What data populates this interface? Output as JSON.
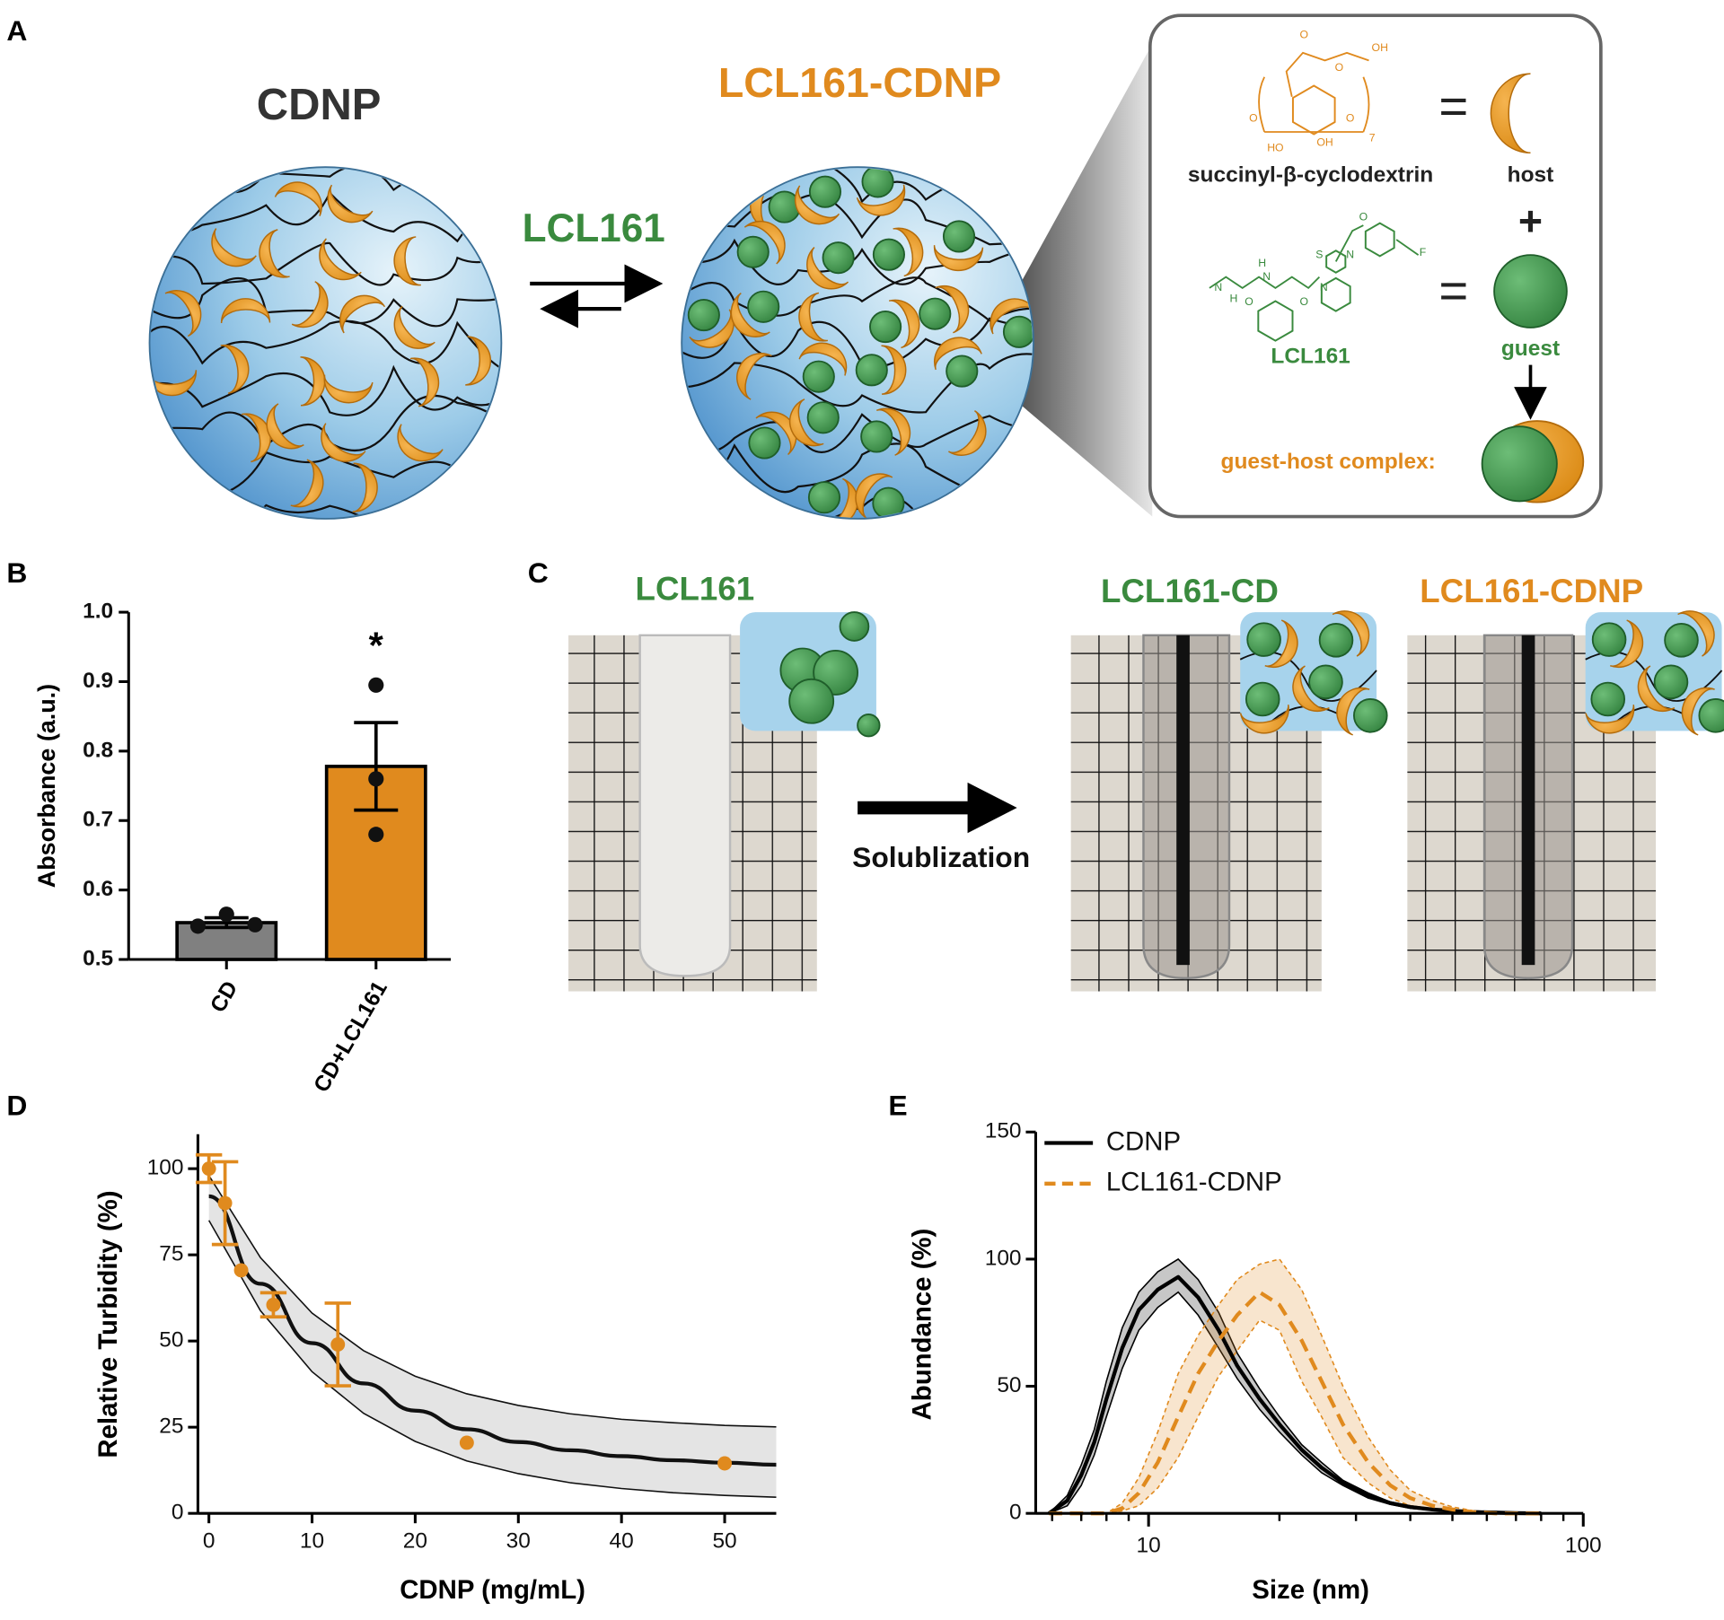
{
  "panel_labels": [
    "A",
    "B",
    "C",
    "D",
    "E"
  ],
  "diagram_a": {
    "cdnp_label": "CDNP",
    "loaded_label": "LCL161-CDNP",
    "arrow_label": "LCL161",
    "box": {
      "host_name": "succinyl-β-cyclodextrin",
      "equals_1": "=",
      "host": "host",
      "plus": "+",
      "guest_name": "LCL161",
      "equals_2": "=",
      "guest": "guest",
      "complex": "guest-host complex:"
    },
    "host_atoms": [
      "O",
      "O",
      "OH",
      "O",
      "O",
      "HO",
      "OH",
      "7"
    ],
    "guest_atoms": [
      "N",
      "H",
      "O",
      "H",
      "N",
      "O",
      "N",
      "S",
      "N",
      "O",
      "F"
    ]
  },
  "panel_c": {
    "labels": [
      "LCL161",
      "LCL161-CD",
      "LCL161-CDNP"
    ],
    "arrow_label": "Solublization"
  },
  "chart_data": [
    {
      "type": "bar",
      "categories": [
        "CD",
        "CD+LCL161"
      ],
      "values": [
        0.553,
        0.778
      ],
      "errors": [
        0.007,
        0.063
      ],
      "points": [
        [
          0.548,
          0.565,
          0.55
        ],
        [
          0.895,
          0.76,
          0.68
        ]
      ],
      "colors": [
        "#808080",
        "#e08a1e"
      ],
      "ylabel": "Absorbance (a.u.)",
      "annotation": "*",
      "ylim": [
        0.5,
        1
      ],
      "yticks": [
        0.5,
        0.6,
        0.7,
        0.8,
        0.9,
        {
          "value": 1,
          "label": "1.0"
        }
      ]
    },
    {
      "type": "scatter",
      "x": [
        0,
        1.5625,
        3.125,
        6.25,
        12.5,
        25,
        50
      ],
      "values": [
        100,
        90,
        70.5,
        60.5,
        49,
        20.5,
        14.5
      ],
      "errors": [
        4,
        12,
        0,
        3.5,
        12,
        0,
        0
      ],
      "color": "#e08a1e",
      "fit": {
        "x": [
          0,
          5,
          10,
          15,
          20,
          25,
          30,
          35,
          40,
          45,
          50,
          55
        ],
        "values": [
          92,
          66.6,
          49.4,
          37.7,
          29.8,
          24.4,
          20.7,
          18.3,
          16.6,
          15.4,
          14.7,
          14.1
        ],
        "upper": [
          98,
          74.2,
          58.1,
          47.2,
          39.8,
          34.7,
          31.3,
          28.9,
          27.3,
          26.3,
          25.5,
          25.1
        ],
        "lower": [
          85,
          58.8,
          41.1,
          29,
          20.9,
          15.2,
          11.5,
          8.9,
          7.2,
          6,
          5.2,
          4.7
        ]
      },
      "xlabel": "CDNP (mg/mL)",
      "ylabel": "Relative Turbidity (%)",
      "xlim": [
        0,
        55
      ],
      "xticks": [
        0,
        10,
        20,
        30,
        40,
        50
      ],
      "ylim": [
        0,
        110
      ],
      "yticks": [
        0,
        25,
        50,
        75,
        100
      ]
    },
    {
      "type": "line",
      "log_x": true,
      "legend": "upper left",
      "x": [
        5.9,
        6.5,
        7,
        7.5,
        8,
        8.7,
        9.5,
        10.5,
        11.7,
        13,
        14.5,
        16,
        18,
        20,
        22.5,
        25,
        28,
        32,
        36,
        40,
        45,
        50,
        56,
        63,
        70,
        80
      ],
      "series": [
        {
          "name": "CDNP",
          "color": "#000000",
          "dashed": false,
          "values": [
            0,
            5,
            15,
            28,
            45,
            65,
            80,
            88,
            93,
            85,
            72,
            58,
            45,
            35,
            25,
            18,
            12,
            7,
            4,
            2.5,
            1.5,
            1,
            0.5,
            0.3,
            0.1,
            0
          ],
          "upper": [
            0,
            7,
            19,
            33,
            52,
            73,
            87,
            95,
            100,
            92,
            79,
            63,
            49,
            38,
            27,
            20,
            13,
            8,
            4.5,
            3,
            1.8,
            1.2,
            0.6,
            0.4,
            0.1,
            0
          ],
          "lower": [
            0,
            3,
            11,
            23,
            38,
            57,
            72,
            81,
            87,
            78,
            65,
            53,
            41,
            32,
            23,
            16,
            11,
            6,
            3.5,
            2,
            1.2,
            0.8,
            0.4,
            0.2,
            0.1,
            0
          ]
        },
        {
          "name": "LCL161-CDNP",
          "color": "#e08a1e",
          "dashed": true,
          "values": [
            0,
            0,
            0,
            0,
            0,
            2,
            8,
            20,
            38,
            55,
            68,
            78,
            87,
            82,
            68,
            52,
            35,
            20,
            11,
            6,
            3,
            1.5,
            0.5,
            0,
            0,
            0
          ],
          "upper": [
            0,
            0,
            0,
            0,
            0,
            4,
            14,
            32,
            55,
            70,
            82,
            92,
            98,
            100,
            88,
            70,
            50,
            30,
            17,
            9,
            5,
            2.5,
            1,
            0.3,
            0,
            0
          ],
          "lower": [
            0,
            0,
            0,
            0,
            0,
            1,
            3,
            10,
            22,
            38,
            54,
            64,
            76,
            72,
            52,
            38,
            22,
            12,
            6,
            3,
            1.5,
            0.8,
            0.2,
            0,
            0,
            0
          ]
        }
      ],
      "xlabel": "Size (nm)",
      "ylabel": "Abundance (%)",
      "xlim": [
        5.5,
        100
      ],
      "xticks": [
        10,
        100
      ],
      "xminor_ticks": [
        6,
        7,
        8,
        9,
        20,
        30,
        40,
        50,
        60,
        70,
        80,
        90
      ],
      "ylim": [
        0,
        150
      ],
      "yticks": [
        0,
        50,
        100,
        150
      ]
    }
  ]
}
